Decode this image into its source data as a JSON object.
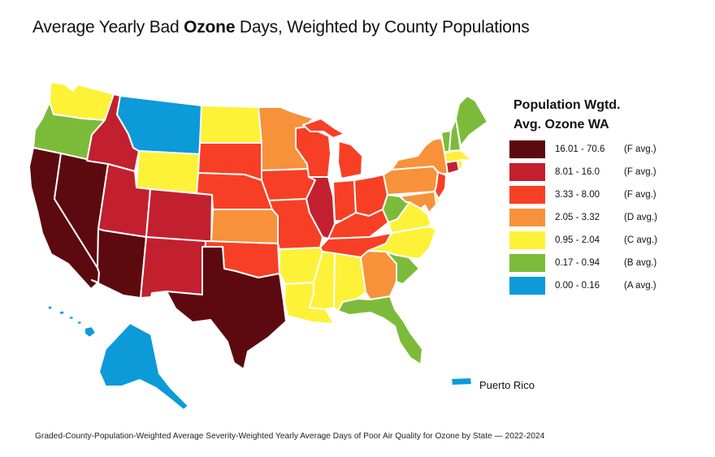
{
  "title": {
    "prefix": "Average Yearly Bad ",
    "bold": "Ozone",
    "suffix": " Days, Weighted by County Populations"
  },
  "legend": {
    "title_line1": "Population Wgtd.",
    "title_line2": "Avg. Ozone WA",
    "items": [
      {
        "range": "16.01 - 70.6",
        "grade": "(F avg.)",
        "color": "#5c0a0f"
      },
      {
        "range": "8.01 - 16.0",
        "grade": "(F avg.)",
        "color": "#c3202f"
      },
      {
        "range": "3.33 - 8.00",
        "grade": "(F avg.)",
        "color": "#f73f25"
      },
      {
        "range": "2.05 - 3.32",
        "grade": "(D avg.)",
        "color": "#f7923a"
      },
      {
        "range": "0.95 - 2.04",
        "grade": "(C avg.)",
        "color": "#fdf237"
      },
      {
        "range": "0.17 - 0.94",
        "grade": "(B avg.)",
        "color": "#7cbb3a"
      },
      {
        "range": "0.00 - 0.16",
        "grade": "(A avg.)",
        "color": "#0c9ad9"
      }
    ]
  },
  "state_categories": {
    "WA": "0.95 - 2.04",
    "OR": "0.17 - 0.94",
    "CA": "16.01 - 70.6",
    "NV": "16.01 - 70.6",
    "ID": "8.01 - 16.0",
    "MT": "0.00 - 0.16",
    "WY": "0.95 - 2.04",
    "UT": "8.01 - 16.0",
    "AZ": "16.01 - 70.6",
    "CO": "8.01 - 16.0",
    "NM": "8.01 - 16.0",
    "ND": "0.95 - 2.04",
    "SD": "3.33 - 8.00",
    "NE": "3.33 - 8.00",
    "KS": "2.05 - 3.32",
    "OK": "3.33 - 8.00",
    "TX": "16.01 - 70.6",
    "MN": "2.05 - 3.32",
    "IA": "3.33 - 8.00",
    "MO": "3.33 - 8.00",
    "AR": "0.95 - 2.04",
    "LA": "0.95 - 2.04",
    "WI": "3.33 - 8.00",
    "IL": "8.01 - 16.0",
    "MI": "3.33 - 8.00",
    "IN": "3.33 - 8.00",
    "OH": "3.33 - 8.00",
    "KY": "3.33 - 8.00",
    "TN": "3.33 - 8.00",
    "MS": "0.95 - 2.04",
    "AL": "0.95 - 2.04",
    "GA": "2.05 - 3.32",
    "FL": "0.17 - 0.94",
    "SC": "0.17 - 0.94",
    "NC": "0.95 - 2.04",
    "VA": "0.95 - 2.04",
    "WV": "0.17 - 0.94",
    "PA": "2.05 - 3.32",
    "NY": "2.05 - 3.32",
    "NJ": "3.33 - 8.00",
    "MD": "2.05 - 3.32",
    "DE": "0.95 - 2.04",
    "CT": "8.01 - 16.0",
    "RI": "0.95 - 2.04",
    "MA": "0.95 - 2.04",
    "VT": "0.17 - 0.94",
    "NH": "0.17 - 0.94",
    "ME": "0.17 - 0.94",
    "AK": "0.00 - 0.16",
    "HI": "0.00 - 0.16",
    "PR": "0.00 - 0.16"
  },
  "puerto_rico_label": "Puerto Rico",
  "footer": "Graded-County-Population-Weighted Average Severity-Weighted Yearly Average Days of Poor Air Quality for Ozone by State — 2022-2024"
}
